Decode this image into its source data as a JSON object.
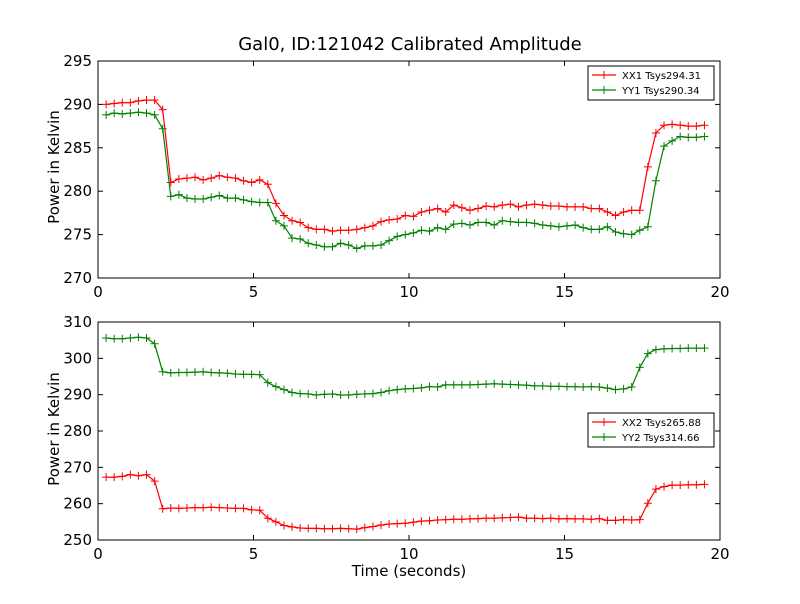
{
  "colors": {
    "red": "#ff0000",
    "green": "#008000"
  },
  "chart_data": [
    {
      "type": "line",
      "title": "Gal0, ID:121042 Calibrated Amplitude",
      "xlabel": "",
      "ylabel": "Power in Kelvin",
      "xlim": [
        0,
        20
      ],
      "ylim": [
        270,
        295
      ],
      "xticks": [
        0,
        5,
        10,
        15,
        20
      ],
      "yticks": [
        270,
        275,
        280,
        285,
        290,
        295
      ],
      "grid": false,
      "legend": "top-right",
      "x": [
        0.26,
        0.52,
        0.78,
        1.04,
        1.3,
        1.56,
        1.82,
        2.08,
        2.34,
        2.6,
        2.86,
        3.12,
        3.38,
        3.64,
        3.9,
        4.16,
        4.42,
        4.68,
        4.94,
        5.2,
        5.46,
        5.72,
        5.98,
        6.24,
        6.5,
        6.76,
        7.02,
        7.28,
        7.54,
        7.8,
        8.06,
        8.32,
        8.58,
        8.84,
        9.1,
        9.36,
        9.62,
        9.88,
        10.14,
        10.4,
        10.66,
        10.92,
        11.18,
        11.44,
        11.7,
        11.96,
        12.22,
        12.48,
        12.74,
        13.0,
        13.26,
        13.52,
        13.78,
        14.04,
        14.3,
        14.56,
        14.82,
        15.08,
        15.34,
        15.6,
        15.86,
        16.12,
        16.38,
        16.64,
        16.9,
        17.16,
        17.42,
        17.68,
        17.94,
        18.2,
        18.46,
        18.72,
        18.98,
        19.24,
        19.5
      ],
      "series": [
        {
          "name": "XX1 Tsys294.31",
          "color": "#ff0000",
          "values": [
            290.0,
            290.1,
            290.2,
            290.2,
            290.4,
            290.5,
            290.5,
            289.4,
            281.0,
            281.4,
            281.5,
            281.6,
            281.3,
            281.5,
            281.8,
            281.6,
            281.5,
            281.2,
            281.0,
            281.3,
            280.8,
            278.6,
            277.2,
            276.6,
            276.4,
            275.8,
            275.6,
            275.6,
            275.4,
            275.5,
            275.5,
            275.6,
            275.8,
            276.0,
            276.5,
            276.7,
            276.8,
            277.2,
            277.1,
            277.6,
            277.8,
            278.0,
            277.6,
            278.4,
            278.1,
            277.8,
            278.0,
            278.3,
            278.2,
            278.4,
            278.5,
            278.2,
            278.4,
            278.5,
            278.4,
            278.3,
            278.3,
            278.2,
            278.2,
            278.2,
            278.0,
            278.0,
            277.6,
            277.2,
            277.6,
            277.8,
            277.8,
            282.8,
            286.7,
            287.6,
            287.7,
            287.6,
            287.5,
            287.5,
            287.6
          ]
        },
        {
          "name": "YY1 Tsys290.34",
          "color": "#008000",
          "values": [
            288.8,
            289.0,
            288.9,
            289.0,
            289.1,
            289.0,
            288.8,
            287.2,
            279.4,
            279.6,
            279.2,
            279.1,
            279.1,
            279.3,
            279.5,
            279.2,
            279.2,
            279.0,
            278.8,
            278.7,
            278.7,
            276.6,
            276.0,
            274.6,
            274.5,
            274.0,
            273.8,
            273.6,
            273.6,
            274.0,
            273.8,
            273.4,
            273.7,
            273.7,
            273.8,
            274.3,
            274.8,
            275.0,
            275.2,
            275.5,
            275.4,
            275.8,
            275.6,
            276.2,
            276.3,
            276.1,
            276.4,
            276.4,
            276.1,
            276.6,
            276.5,
            276.4,
            276.4,
            276.3,
            276.1,
            276.0,
            275.9,
            276.0,
            276.1,
            275.8,
            275.6,
            275.6,
            275.9,
            275.3,
            275.1,
            275.0,
            275.5,
            275.9,
            281.2,
            285.2,
            285.8,
            286.3,
            286.2,
            286.2,
            286.3
          ]
        }
      ]
    },
    {
      "type": "line",
      "title": "",
      "xlabel": "Time (seconds)",
      "ylabel": "Power in Kelvin",
      "xlim": [
        0,
        20
      ],
      "ylim": [
        250,
        310
      ],
      "xticks": [
        0,
        5,
        10,
        15,
        20
      ],
      "yticks": [
        250,
        260,
        270,
        280,
        290,
        300,
        310
      ],
      "grid": false,
      "legend": "center-right",
      "x": [
        0.26,
        0.52,
        0.78,
        1.04,
        1.3,
        1.56,
        1.82,
        2.08,
        2.34,
        2.6,
        2.86,
        3.12,
        3.38,
        3.64,
        3.9,
        4.16,
        4.42,
        4.68,
        4.94,
        5.2,
        5.46,
        5.72,
        5.98,
        6.24,
        6.5,
        6.76,
        7.02,
        7.28,
        7.54,
        7.8,
        8.06,
        8.32,
        8.58,
        8.84,
        9.1,
        9.36,
        9.62,
        9.88,
        10.14,
        10.4,
        10.66,
        10.92,
        11.18,
        11.44,
        11.7,
        11.96,
        12.22,
        12.48,
        12.74,
        13.0,
        13.26,
        13.52,
        13.78,
        14.04,
        14.3,
        14.56,
        14.82,
        15.08,
        15.34,
        15.6,
        15.86,
        16.12,
        16.38,
        16.64,
        16.9,
        17.16,
        17.42,
        17.68,
        17.94,
        18.2,
        18.46,
        18.72,
        18.98,
        19.24,
        19.5
      ],
      "series": [
        {
          "name": "XX2 Tsys265.88",
          "color": "#ff0000",
          "values": [
            267.3,
            267.3,
            267.5,
            268.0,
            267.7,
            268.0,
            266.2,
            258.6,
            258.8,
            258.7,
            258.8,
            258.9,
            258.9,
            259.0,
            258.9,
            258.8,
            258.7,
            258.7,
            258.3,
            258.2,
            256.0,
            255.0,
            254.0,
            253.6,
            253.3,
            253.2,
            253.2,
            253.1,
            253.1,
            253.2,
            253.1,
            253.0,
            253.4,
            253.7,
            254.1,
            254.4,
            254.5,
            254.6,
            254.9,
            255.2,
            255.3,
            255.5,
            255.6,
            255.7,
            255.7,
            255.8,
            255.9,
            256.0,
            256.0,
            256.1,
            256.2,
            256.3,
            256.0,
            256.0,
            255.9,
            256.0,
            255.8,
            255.9,
            255.8,
            255.8,
            255.7,
            255.9,
            255.4,
            255.4,
            255.6,
            255.5,
            255.6,
            260.1,
            264.0,
            264.7,
            265.1,
            265.1,
            265.2,
            265.2,
            265.3
          ]
        },
        {
          "name": "YY2 Tsys314.66",
          "color": "#008000",
          "values": [
            305.6,
            305.4,
            305.4,
            305.6,
            305.8,
            305.6,
            304.0,
            296.3,
            296.0,
            296.1,
            296.1,
            296.2,
            296.3,
            296.1,
            296.0,
            295.9,
            295.7,
            295.6,
            295.6,
            295.5,
            293.3,
            292.2,
            291.4,
            290.6,
            290.3,
            290.2,
            289.9,
            290.1,
            290.2,
            289.9,
            289.9,
            290.1,
            290.2,
            290.3,
            290.6,
            291.1,
            291.4,
            291.6,
            291.7,
            291.9,
            292.2,
            292.1,
            292.7,
            292.7,
            292.7,
            292.7,
            292.8,
            292.9,
            293.0,
            292.9,
            292.8,
            292.7,
            292.6,
            292.4,
            292.4,
            292.3,
            292.3,
            292.2,
            292.2,
            292.1,
            292.2,
            292.1,
            291.8,
            291.4,
            291.6,
            292.1,
            297.5,
            301.3,
            302.4,
            302.6,
            302.7,
            302.7,
            302.8,
            302.8,
            302.8
          ]
        }
      ]
    }
  ]
}
